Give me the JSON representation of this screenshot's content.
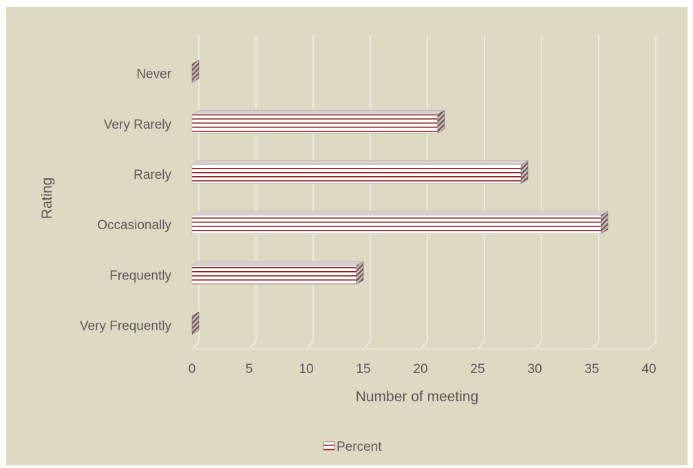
{
  "chart_data": {
    "type": "bar",
    "orientation": "horizontal",
    "three_d": true,
    "categories": [
      "Never",
      "Very Rarely",
      "Rarely",
      "Occasionally",
      "Frequently",
      "Very Frequently"
    ],
    "series": [
      {
        "name": "Percent",
        "values": [
          0,
          21.5,
          28.8,
          35.8,
          14.4,
          0
        ]
      }
    ],
    "xlabel": "Number of meeting",
    "ylabel": "Rating",
    "xlim": [
      0,
      40
    ],
    "xticks": [
      "0",
      "5",
      "10",
      "15",
      "20",
      "25",
      "30",
      "35",
      "40"
    ],
    "grid": true,
    "legend": {
      "position": "bottom",
      "entries": [
        "Percent"
      ]
    },
    "colors": {
      "background": "#ddd9c3",
      "bar_fill": "#ffffff",
      "bar_stripe": "#8b1a1a",
      "bar_side": "#7a6a6a",
      "grid": "#f2f0e6",
      "text": "#595959"
    }
  }
}
